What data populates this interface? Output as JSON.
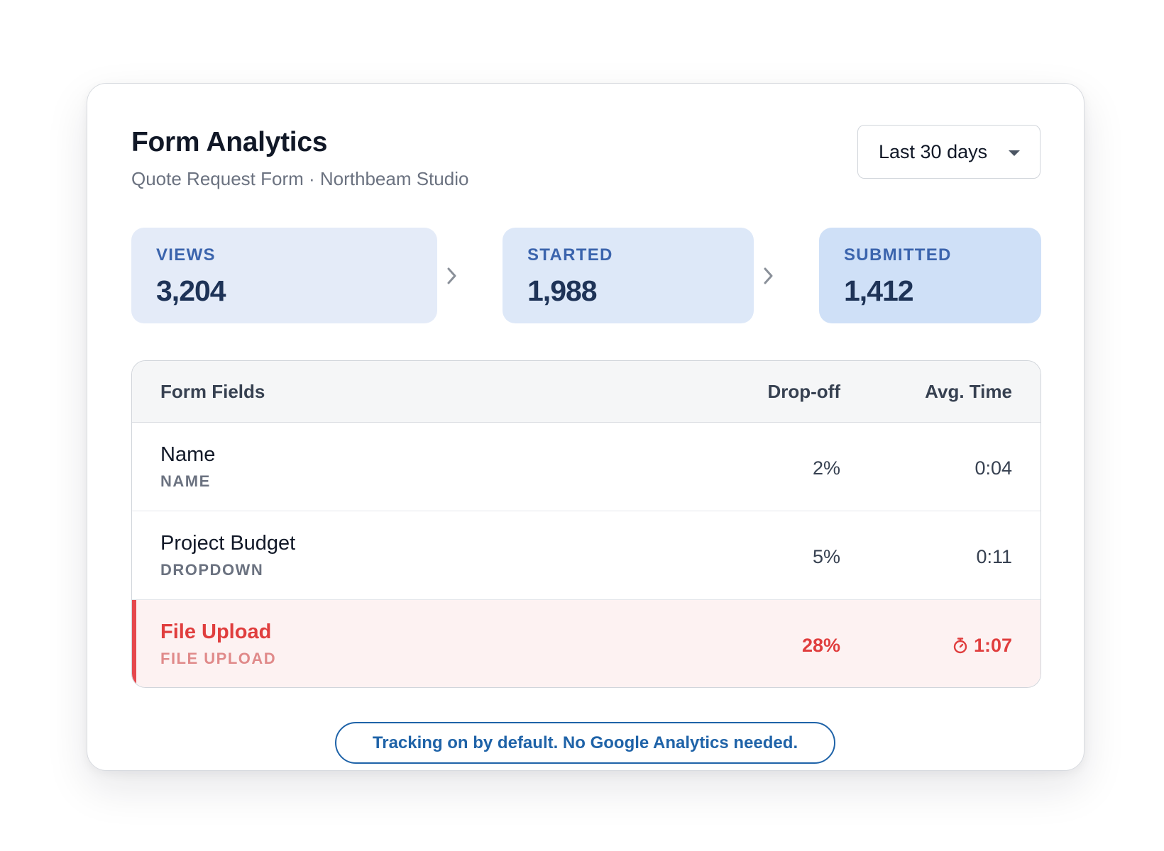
{
  "header": {
    "title": "Form Analytics",
    "subtitle": "Quote Request Form · Northbeam Studio"
  },
  "range_select": {
    "selected": "Last 30 days",
    "icon": "caret-down-icon"
  },
  "funnel": {
    "views": {
      "label": "VIEWS",
      "value": "3,204"
    },
    "started": {
      "label": "STARTED",
      "value": "1,988"
    },
    "submitted": {
      "label": "SUBMITTED",
      "value": "1,412"
    },
    "separator_icon": "chevron-right-icon"
  },
  "table": {
    "columns": {
      "field": "Form Fields",
      "dropoff": "Drop-off",
      "avg_time": "Avg. Time"
    },
    "rows": [
      {
        "name": "Name",
        "type": "NAME",
        "dropoff": "2%",
        "avg_time": "0:04"
      },
      {
        "name": "Project Budget",
        "type": "DROPDOWN",
        "dropoff": "5%",
        "avg_time": "0:11"
      },
      {
        "name": "File Upload",
        "type": "FILE UPLOAD",
        "dropoff": "28%",
        "avg_time": "1:07",
        "highlight": true,
        "time_icon": "stopwatch-icon"
      }
    ]
  },
  "notice": {
    "text": "Tracking on by default. No Google Analytics needed."
  },
  "colors": {
    "accent_blue": "#1f63a8",
    "stat_label": "#3b64ad",
    "stat_value": "#1e3357",
    "alert_red": "#e03e3e",
    "alert_bg": "#fdf2f2"
  }
}
